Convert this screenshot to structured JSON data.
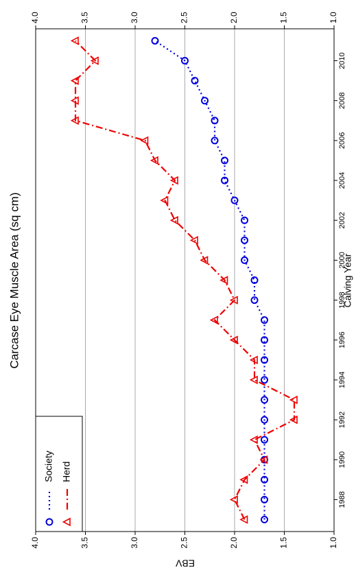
{
  "chart_data": {
    "type": "line",
    "title": "Carcase Eye Muscle Area (sq cm)",
    "x_label": "Calving Year",
    "y_label": "EBV",
    "x": [
      1987,
      1988,
      1989,
      1990,
      1991,
      1992,
      1993,
      1994,
      1995,
      1996,
      1997,
      1998,
      1999,
      2000,
      2001,
      2002,
      2003,
      2004,
      2005,
      2006,
      2007,
      2008,
      2009,
      2010,
      2011
    ],
    "series": [
      {
        "name": "Society",
        "color": "#0000dd",
        "marker": "circle",
        "dash": "2,4",
        "values": [
          1.7,
          1.7,
          1.7,
          1.7,
          1.7,
          1.7,
          1.7,
          1.7,
          1.7,
          1.7,
          1.7,
          1.8,
          1.8,
          1.9,
          1.9,
          1.9,
          2.0,
          2.1,
          2.1,
          2.2,
          2.2,
          2.3,
          2.4,
          2.5,
          2.8
        ]
      },
      {
        "name": "Herd",
        "color": "#ee0000",
        "marker": "triangle",
        "dash": "10,4,2,4",
        "values": [
          1.9,
          2.0,
          1.9,
          1.7,
          1.8,
          1.4,
          1.4,
          1.8,
          1.8,
          2.0,
          2.2,
          2.0,
          2.1,
          2.3,
          2.4,
          2.6,
          2.7,
          2.6,
          2.8,
          2.9,
          3.6,
          3.6,
          3.6,
          3.4,
          3.6
        ]
      }
    ],
    "xlim": [
      1986.4,
      2011.6
    ],
    "xticks": [
      1988,
      1990,
      1992,
      1994,
      1996,
      1998,
      2000,
      2002,
      2004,
      2006,
      2008,
      2010
    ],
    "ylim": [
      1,
      4
    ],
    "yticks": [
      {
        "value": 1,
        "label": "1.0"
      },
      {
        "value": 1.5,
        "label": "1.5"
      },
      {
        "value": 2,
        "label": "2.0"
      },
      {
        "value": 2.5,
        "label": "2.5"
      },
      {
        "value": 3,
        "label": "3.0"
      },
      {
        "value": 3.5,
        "label": "3.5"
      },
      {
        "value": 4,
        "label": "4.0"
      }
    ],
    "grid": true,
    "legend": "upper-left"
  }
}
